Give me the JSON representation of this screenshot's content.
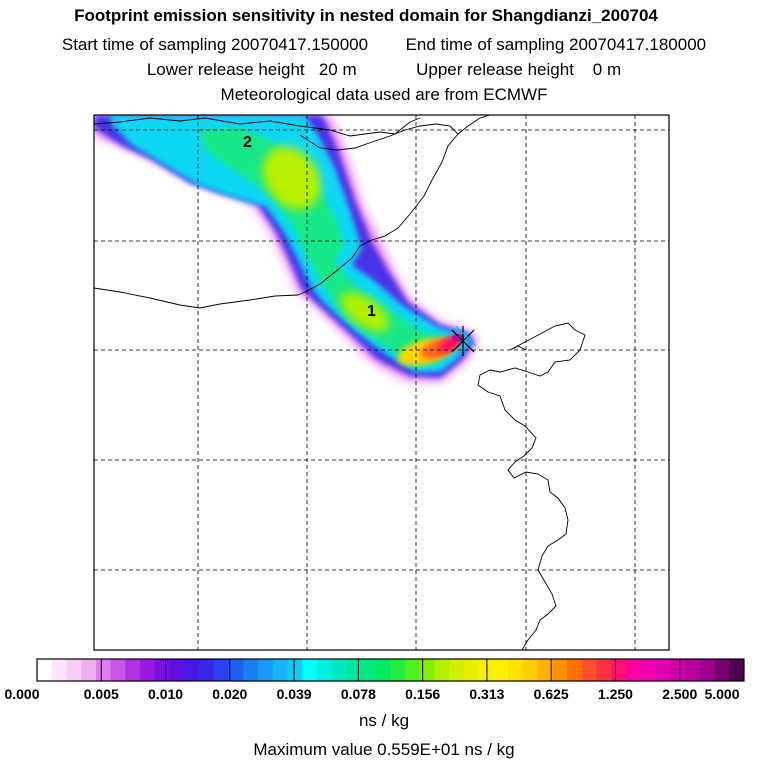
{
  "header": {
    "title": "Footprint emission sensitivity in nested domain for Shangdianzi_200704",
    "start_label": "Start time of sampling 20070417.150000",
    "end_label": "End time of sampling 20070417.180000",
    "lower_label": "Lower release height   20 m",
    "upper_label": "Upper release height    0 m",
    "met_label": "Meteorological data used are from ECMWF"
  },
  "map": {
    "label_1": "1",
    "label_2": "2"
  },
  "colorbar": {
    "ticks": [
      "0.000",
      "0.005",
      "0.010",
      "0.020",
      "0.039",
      "0.078",
      "0.156",
      "0.313",
      "0.625",
      "1.250",
      "2.500",
      "5.000"
    ],
    "colors": [
      "#ffffff",
      "#fde6fb",
      "#f8ccf5",
      "#f0b0f0",
      "#dd80ec",
      "#c655e8",
      "#b030e4",
      "#9a18e2",
      "#7c10e0",
      "#6010e0",
      "#4818e8",
      "#3828ee",
      "#2a40f2",
      "#1e60f4",
      "#1a7ef6",
      "#1a98f6",
      "#18b2f6",
      "#10ccf4",
      "#00ffff",
      "#00f0e0",
      "#00e8c0",
      "#00e8a0",
      "#00e880",
      "#00ea60",
      "#20ee40",
      "#50f020",
      "#80f000",
      "#b0f000",
      "#d0f000",
      "#e8f000",
      "#f8f000",
      "#fff000",
      "#ffe000",
      "#ffcc00",
      "#ffb000",
      "#ff9000",
      "#ff7000",
      "#ff5030",
      "#ff3040",
      "#ff1070",
      "#ff00a0",
      "#f000b0",
      "#e000b0",
      "#cc00a8",
      "#b800a0",
      "#a00090",
      "#7a0070",
      "#500050"
    ],
    "unit": "ns / kg",
    "max_label": "Maximum value  0.559E+01 ns / kg"
  }
}
